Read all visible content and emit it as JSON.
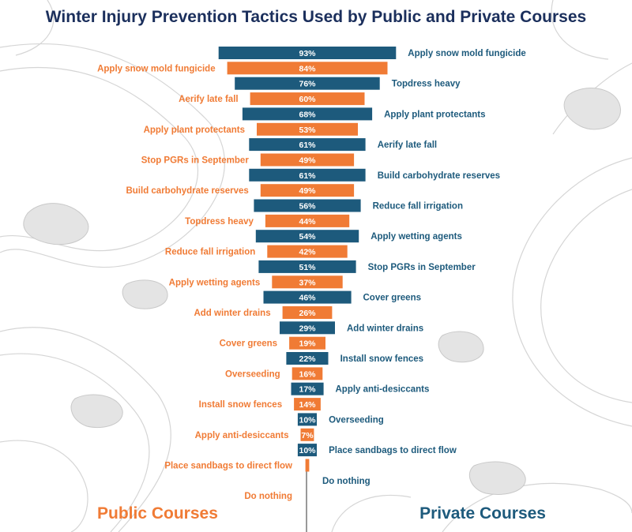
{
  "chart_data": {
    "type": "bar",
    "orientation": "horizontal-centered",
    "title": "Winter Injury Prevention Tactics Used by Public and Private Courses",
    "series": [
      {
        "name": "Private Courses",
        "color": "#1d5a7c",
        "label_side": "right",
        "categories": [
          "Apply snow mold fungicide",
          "Topdress heavy",
          "Apply plant protectants",
          "Aerify late fall",
          "Build carbohydrate reserves",
          "Reduce fall irrigation",
          "Apply wetting agents",
          "Stop PGRs in September",
          "Cover greens",
          "Add winter drains",
          "Install snow fences",
          "Apply anti-desiccants",
          "Overseeding",
          "Place sandbags to direct flow",
          "Do nothing"
        ],
        "values": [
          93,
          76,
          68,
          61,
          61,
          56,
          54,
          51,
          46,
          29,
          22,
          17,
          10,
          10,
          0
        ],
        "value_labels": [
          "93%",
          "76%",
          "68%",
          "61%",
          "61%",
          "56%",
          "54%",
          "51%",
          "46%",
          "29%",
          "22%",
          "17%",
          "10%",
          "10%",
          ""
        ]
      },
      {
        "name": "Public Courses",
        "color": "#f07b35",
        "label_side": "left",
        "categories": [
          "Apply snow mold fungicide",
          "Aerify late fall",
          "Apply plant protectants",
          "Stop PGRs in September",
          "Build carbohydrate reserves",
          "Topdress heavy",
          "Reduce fall irrigation",
          "Apply wetting agents",
          "Add winter drains",
          "Cover greens",
          "Overseeding",
          "Install snow fences",
          "Apply anti-desiccants",
          "Place sandbags to direct flow",
          "Do nothing"
        ],
        "values": [
          84,
          60,
          53,
          49,
          49,
          44,
          42,
          37,
          26,
          19,
          16,
          14,
          7,
          2,
          0
        ],
        "value_labels": [
          "84%",
          "60%",
          "53%",
          "49%",
          "49%",
          "44%",
          "42%",
          "37%",
          "26%",
          "19%",
          "16%",
          "14%",
          "7%",
          "",
          ""
        ]
      }
    ]
  },
  "colors": {
    "title": "#1b2f5c",
    "private": "#1d5a7c",
    "public": "#f07b35",
    "background_lines": "#d5d5d5",
    "background_shapes": "#e4e4e4"
  }
}
